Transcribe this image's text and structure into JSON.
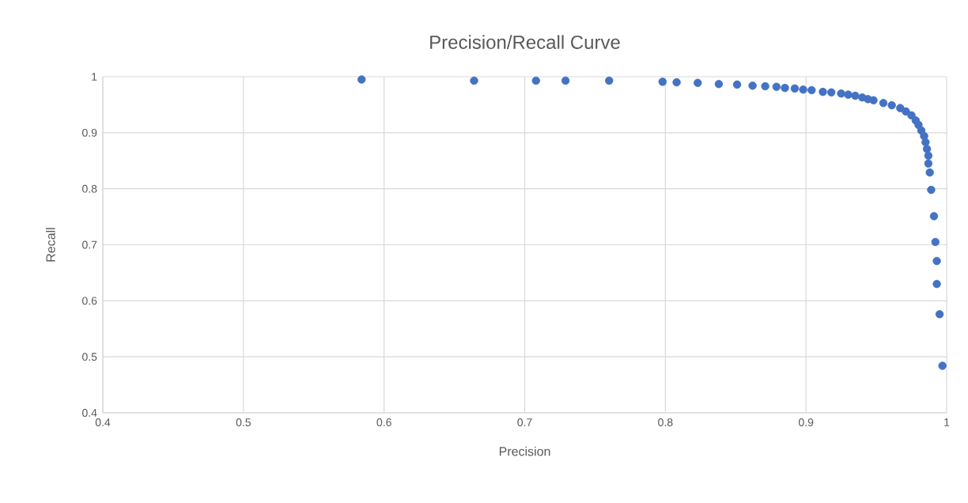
{
  "chart_data": {
    "type": "scatter",
    "title": "Precision/Recall Curve",
    "xlabel": "Precision",
    "ylabel": "Recall",
    "x": [
      0.584,
      0.664,
      0.708,
      0.729,
      0.76,
      0.798,
      0.808,
      0.823,
      0.838,
      0.851,
      0.862,
      0.871,
      0.879,
      0.885,
      0.892,
      0.898,
      0.904,
      0.912,
      0.918,
      0.925,
      0.93,
      0.935,
      0.94,
      0.944,
      0.948,
      0.955,
      0.961,
      0.967,
      0.971,
      0.975,
      0.978,
      0.98,
      0.982,
      0.984,
      0.985,
      0.986,
      0.987,
      0.987,
      0.988,
      0.989,
      0.991,
      0.992,
      0.993,
      0.993,
      0.995,
      0.997
    ],
    "series": [
      {
        "color": "#4472c4",
        "values": [
          0.995,
          0.993,
          0.993,
          0.993,
          0.993,
          0.991,
          0.99,
          0.989,
          0.987,
          0.986,
          0.984,
          0.983,
          0.982,
          0.98,
          0.979,
          0.977,
          0.976,
          0.973,
          0.972,
          0.97,
          0.968,
          0.966,
          0.963,
          0.96,
          0.958,
          0.953,
          0.949,
          0.944,
          0.938,
          0.931,
          0.922,
          0.914,
          0.904,
          0.894,
          0.883,
          0.871,
          0.859,
          0.845,
          0.829,
          0.798,
          0.751,
          0.705,
          0.671,
          0.63,
          0.576,
          0.484
        ]
      }
    ],
    "xlim": [
      0.4,
      1
    ],
    "ylim": [
      0.4,
      1
    ],
    "xticks": [
      0.4,
      0.5,
      0.6,
      0.7,
      0.8,
      0.9,
      1
    ],
    "yticks": [
      0.4,
      0.5,
      0.6,
      0.7,
      0.8,
      0.9,
      1
    ],
    "grid": true,
    "marker": "circle"
  }
}
